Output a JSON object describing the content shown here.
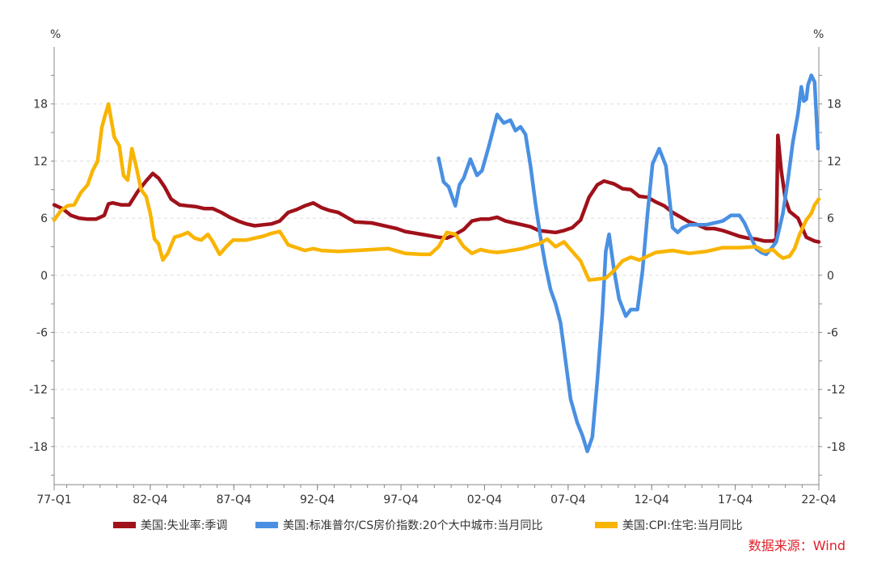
{
  "chart_data": {
    "type": "line",
    "left_axis_unit": "%",
    "right_axis_unit": "%",
    "ylim": [
      -22,
      24
    ],
    "yticks": [
      18,
      12,
      6,
      0,
      -6,
      -12,
      -18
    ],
    "xlim": [
      1977.0,
      2022.75
    ],
    "x_tick_labels": [
      "77-Q1",
      "82-Q4",
      "87-Q4",
      "92-Q4",
      "97-Q4",
      "02-Q4",
      "07-Q4",
      "12-Q4",
      "17-Q4",
      "22-Q4"
    ],
    "x_tick_positions": [
      1977.0,
      1982.75,
      1987.75,
      1992.75,
      1997.75,
      2002.75,
      2007.75,
      2012.75,
      2017.75,
      2022.75
    ],
    "grid": "horizontal-dashed",
    "legend_position": "bottom",
    "source": "数据来源：Wind",
    "series": [
      {
        "name": "美国:失业率:季调",
        "color": "#a0111a",
        "x": [
          1977.0,
          1977.5,
          1978.0,
          1978.5,
          1979.0,
          1979.5,
          1980.0,
          1980.25,
          1980.5,
          1981.0,
          1981.5,
          1982.0,
          1982.5,
          1982.9,
          1983.25,
          1983.6,
          1984.0,
          1984.5,
          1985.0,
          1985.5,
          1986.0,
          1986.5,
          1987.0,
          1987.5,
          1988.0,
          1988.5,
          1989.0,
          1989.5,
          1990.0,
          1990.5,
          1991.0,
          1991.5,
          1992.0,
          1992.5,
          1993.0,
          1993.5,
          1994.0,
          1994.5,
          1995.0,
          1996.0,
          1997.0,
          1997.5,
          1998.0,
          1999.0,
          2000.0,
          2000.5,
          2001.0,
          2001.5,
          2002.0,
          2002.5,
          2003.0,
          2003.5,
          2004.0,
          2004.5,
          2005.0,
          2005.5,
          2006.0,
          2006.5,
          2007.0,
          2007.5,
          2008.0,
          2008.5,
          2009.0,
          2009.5,
          2009.9,
          2010.5,
          2011.0,
          2011.5,
          2012.0,
          2012.5,
          2013.0,
          2013.5,
          2014.0,
          2014.5,
          2015.0,
          2015.5,
          2016.0,
          2016.5,
          2017.0,
          2017.5,
          2018.0,
          2018.5,
          2019.0,
          2019.5,
          2020.0,
          2020.2,
          2020.3,
          2020.5,
          2020.75,
          2021.0,
          2021.5,
          2022.0,
          2022.5,
          2022.75
        ],
        "values": [
          7.4,
          7.0,
          6.3,
          6.0,
          5.9,
          5.9,
          6.3,
          7.5,
          7.6,
          7.4,
          7.4,
          8.8,
          9.9,
          10.7,
          10.2,
          9.3,
          8.0,
          7.4,
          7.3,
          7.2,
          7.0,
          7.0,
          6.6,
          6.1,
          5.7,
          5.4,
          5.2,
          5.3,
          5.4,
          5.7,
          6.6,
          6.9,
          7.3,
          7.6,
          7.1,
          6.8,
          6.6,
          6.1,
          5.6,
          5.5,
          5.1,
          4.9,
          4.6,
          4.3,
          4.0,
          3.9,
          4.3,
          4.8,
          5.7,
          5.9,
          5.9,
          6.1,
          5.7,
          5.5,
          5.3,
          5.1,
          4.7,
          4.6,
          4.5,
          4.7,
          5.0,
          5.8,
          8.2,
          9.5,
          9.9,
          9.6,
          9.1,
          9.0,
          8.3,
          8.2,
          7.7,
          7.3,
          6.6,
          6.1,
          5.6,
          5.3,
          4.9,
          4.9,
          4.7,
          4.4,
          4.1,
          3.9,
          3.8,
          3.6,
          3.6,
          3.8,
          14.7,
          11.0,
          8.0,
          6.7,
          6.0,
          4.0,
          3.6,
          3.5
        ]
      },
      {
        "name": "美国:标准普尔/CS房价指数:20个大中城市:当月同比",
        "color": "#4a90e2",
        "x": [
          2000.0,
          2000.3,
          2000.6,
          2001.0,
          2001.25,
          2001.5,
          2001.9,
          2002.3,
          2002.6,
          2003.0,
          2003.5,
          2003.9,
          2004.3,
          2004.6,
          2004.9,
          2005.2,
          2005.5,
          2005.8,
          2006.1,
          2006.4,
          2006.7,
          2007.0,
          2007.3,
          2007.6,
          2007.9,
          2008.3,
          2008.6,
          2008.9,
          2009.2,
          2009.5,
          2009.8,
          2010.0,
          2010.2,
          2010.5,
          2010.8,
          2011.2,
          2011.5,
          2011.9,
          2012.2,
          2012.5,
          2012.8,
          2013.2,
          2013.6,
          2014.0,
          2014.3,
          2014.6,
          2015.0,
          2015.5,
          2016.0,
          2016.5,
          2017.0,
          2017.5,
          2018.0,
          2018.3,
          2018.6,
          2019.0,
          2019.3,
          2019.6,
          2019.9,
          2020.2,
          2020.6,
          2020.9,
          2021.2,
          2021.5,
          2021.7,
          2021.85,
          2022.0,
          2022.1,
          2022.3,
          2022.5,
          2022.7
        ],
        "values": [
          12.3,
          9.8,
          9.3,
          7.3,
          9.5,
          10.2,
          12.2,
          10.5,
          11.0,
          13.5,
          16.9,
          16.0,
          16.3,
          15.2,
          15.6,
          14.8,
          11.5,
          7.5,
          4.0,
          1.0,
          -1.5,
          -3.0,
          -5.0,
          -9.0,
          -13.0,
          -15.5,
          -16.8,
          -18.5,
          -17.0,
          -11.0,
          -4.0,
          2.5,
          4.3,
          0.5,
          -2.5,
          -4.3,
          -3.6,
          -3.6,
          0.5,
          6.5,
          11.7,
          13.3,
          11.5,
          5.0,
          4.5,
          5.0,
          5.3,
          5.3,
          5.3,
          5.5,
          5.7,
          6.3,
          6.3,
          5.5,
          4.3,
          2.8,
          2.4,
          2.2,
          2.8,
          3.5,
          6.5,
          10.0,
          14.0,
          17.0,
          19.8,
          18.3,
          18.5,
          20.0,
          21.0,
          20.3,
          13.3
        ]
      },
      {
        "name": "美国:CPI:住宅:当月同比",
        "color": "#f9b400",
        "x": [
          1977.0,
          1977.4,
          1977.8,
          1978.2,
          1978.6,
          1979.0,
          1979.3,
          1979.6,
          1979.85,
          1980.0,
          1980.25,
          1980.6,
          1980.9,
          1981.15,
          1981.4,
          1981.65,
          1981.9,
          1982.2,
          1982.5,
          1982.75,
          1983.0,
          1983.25,
          1983.5,
          1983.8,
          1984.2,
          1984.6,
          1985.0,
          1985.4,
          1985.8,
          1986.2,
          1986.5,
          1986.9,
          1987.3,
          1987.7,
          1988.0,
          1988.5,
          1989.0,
          1989.5,
          1990.0,
          1990.5,
          1991.0,
          1991.5,
          1992.0,
          1992.5,
          1993.0,
          1994.0,
          1995.0,
          1996.0,
          1997.0,
          1998.0,
          1999.0,
          1999.5,
          2000.0,
          2000.5,
          2001.0,
          2001.5,
          2002.0,
          2002.5,
          2003.0,
          2003.5,
          2004.0,
          2005.0,
          2006.0,
          2006.5,
          2007.0,
          2007.5,
          2008.0,
          2008.5,
          2009.0,
          2009.5,
          2010.0,
          2010.5,
          2011.0,
          2011.5,
          2012.0,
          2013.0,
          2014.0,
          2015.0,
          2016.0,
          2017.0,
          2018.0,
          2019.0,
          2019.5,
          2020.0,
          2020.3,
          2020.6,
          2021.0,
          2021.3,
          2021.6,
          2022.0,
          2022.3,
          2022.5,
          2022.75
        ],
        "values": [
          5.8,
          6.8,
          7.3,
          7.4,
          8.7,
          9.5,
          11.0,
          12.0,
          15.5,
          16.5,
          18.0,
          14.5,
          13.6,
          10.5,
          10.0,
          13.3,
          11.5,
          9.0,
          8.3,
          6.5,
          3.8,
          3.3,
          1.6,
          2.3,
          4.0,
          4.2,
          4.5,
          3.9,
          3.7,
          4.3,
          3.5,
          2.2,
          3.0,
          3.7,
          3.7,
          3.7,
          3.9,
          4.1,
          4.4,
          4.6,
          3.2,
          2.9,
          2.6,
          2.8,
          2.6,
          2.5,
          2.6,
          2.7,
          2.8,
          2.3,
          2.2,
          2.2,
          3.0,
          4.5,
          4.3,
          3.0,
          2.3,
          2.7,
          2.5,
          2.4,
          2.5,
          2.8,
          3.3,
          3.8,
          3.0,
          3.5,
          2.5,
          1.5,
          -0.5,
          -0.4,
          -0.3,
          0.5,
          1.5,
          1.9,
          1.6,
          2.4,
          2.6,
          2.3,
          2.5,
          2.9,
          2.9,
          3.0,
          2.5,
          2.7,
          2.2,
          1.8,
          2.0,
          2.8,
          4.3,
          5.8,
          6.5,
          7.4,
          8.0
        ]
      }
    ]
  }
}
